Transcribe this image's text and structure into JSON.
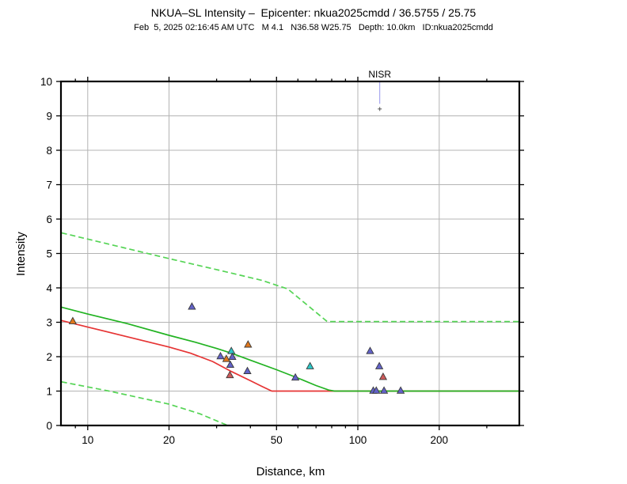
{
  "header": {
    "title": "NKUA–SL Intensity –  Epicenter: nkua2025cmdd / 36.5755 / 25.75",
    "subtitle": "Feb  5, 2025 02:16:45 AM UTC   M 4.1   N36.58 W25.75   Depth: 10.0km   ID:nkua2025cmdd"
  },
  "chart_data": {
    "type": "line",
    "title": "NKUA–SL Intensity – Epicenter: nkua2025cmdd / 36.5755 / 25.75",
    "xlabel": "Distance, km",
    "ylabel": "Intensity",
    "x_scale": "log",
    "xlim": [
      7.96,
      396
    ],
    "ylim": [
      0,
      10
    ],
    "x_major_ticks": [
      10,
      20,
      50,
      100,
      200
    ],
    "x_minor_ticks": [
      9,
      30,
      40,
      60,
      70,
      80,
      90,
      300
    ],
    "y_ticks": [
      0,
      1,
      2,
      3,
      4,
      5,
      6,
      7,
      8,
      9,
      10
    ],
    "grid": true,
    "colors": {
      "grid": "#b4b4b4",
      "frame": "#000000",
      "predicted_line": "#22b322",
      "uncertainty_line": "#55d455",
      "secondary_line": "#e63434",
      "station_label": "#6a6ae6",
      "station_line": "#9595ec",
      "station_dot": "#555555"
    },
    "series": [
      {
        "name": "secondary-model",
        "style": "solid",
        "color_key": "secondary_line",
        "points": [
          [
            8,
            3.05
          ],
          [
            10,
            2.86
          ],
          [
            14,
            2.58
          ],
          [
            20,
            2.28
          ],
          [
            24,
            2.1
          ],
          [
            29,
            1.86
          ],
          [
            34,
            1.57
          ],
          [
            40,
            1.3
          ],
          [
            44,
            1.14
          ],
          [
            48,
            1.0
          ],
          [
            396,
            1.0
          ]
        ]
      },
      {
        "name": "predicted-intensity",
        "style": "solid",
        "color_key": "predicted_line",
        "points": [
          [
            8,
            3.44
          ],
          [
            10,
            3.24
          ],
          [
            14,
            2.96
          ],
          [
            20,
            2.62
          ],
          [
            25,
            2.42
          ],
          [
            30,
            2.24
          ],
          [
            34,
            2.1
          ],
          [
            40,
            1.9
          ],
          [
            50,
            1.62
          ],
          [
            60,
            1.38
          ],
          [
            70,
            1.16
          ],
          [
            78,
            1.03
          ],
          [
            82,
            1.0
          ],
          [
            396,
            1.0
          ]
        ]
      },
      {
        "name": "predicted-upper-bound",
        "style": "dashed",
        "color_key": "uncertainty_line",
        "points": [
          [
            8,
            5.6
          ],
          [
            12,
            5.27
          ],
          [
            20,
            4.85
          ],
          [
            30,
            4.53
          ],
          [
            44,
            4.22
          ],
          [
            55,
            3.97
          ],
          [
            77,
            3.02
          ],
          [
            396,
            3.02
          ]
        ]
      },
      {
        "name": "predicted-lower-bound",
        "style": "dashed",
        "color_key": "uncertainty_line",
        "points": [
          [
            8,
            1.27
          ],
          [
            12,
            1.0
          ],
          [
            20,
            0.62
          ],
          [
            26,
            0.34
          ],
          [
            33,
            0.0
          ]
        ]
      }
    ],
    "marker_colors": {
      "blue": "#6262c8",
      "orange": "#e0771c",
      "cyan": "#2cc6c6",
      "red": "#cd5a5a"
    },
    "scatter": [
      {
        "x": 8.8,
        "y": 3.03,
        "color": "orange"
      },
      {
        "x": 24.3,
        "y": 3.45,
        "color": "blue"
      },
      {
        "x": 39.2,
        "y": 2.35,
        "color": "orange"
      },
      {
        "x": 34.0,
        "y": 2.16,
        "color": "cyan"
      },
      {
        "x": 31.0,
        "y": 2.01,
        "color": "blue"
      },
      {
        "x": 34.3,
        "y": 1.99,
        "color": "blue"
      },
      {
        "x": 32.6,
        "y": 1.93,
        "color": "orange"
      },
      {
        "x": 33.7,
        "y": 1.76,
        "color": "blue"
      },
      {
        "x": 39.0,
        "y": 1.58,
        "color": "blue"
      },
      {
        "x": 33.6,
        "y": 1.46,
        "color": "red"
      },
      {
        "x": 58.7,
        "y": 1.39,
        "color": "blue"
      },
      {
        "x": 66.5,
        "y": 1.72,
        "color": "cyan"
      },
      {
        "x": 111,
        "y": 2.16,
        "color": "blue"
      },
      {
        "x": 120,
        "y": 1.72,
        "color": "blue"
      },
      {
        "x": 124,
        "y": 1.41,
        "color": "red"
      },
      {
        "x": 114,
        "y": 1.01,
        "color": "blue"
      },
      {
        "x": 117,
        "y": 1.01,
        "color": "blue"
      },
      {
        "x": 125,
        "y": 1.01,
        "color": "blue"
      },
      {
        "x": 144,
        "y": 1.01,
        "color": "blue"
      }
    ],
    "station_annotation": {
      "label": "NISR",
      "x": 120.5,
      "line_to_y": 9.35,
      "marker_y": 9.2
    }
  }
}
